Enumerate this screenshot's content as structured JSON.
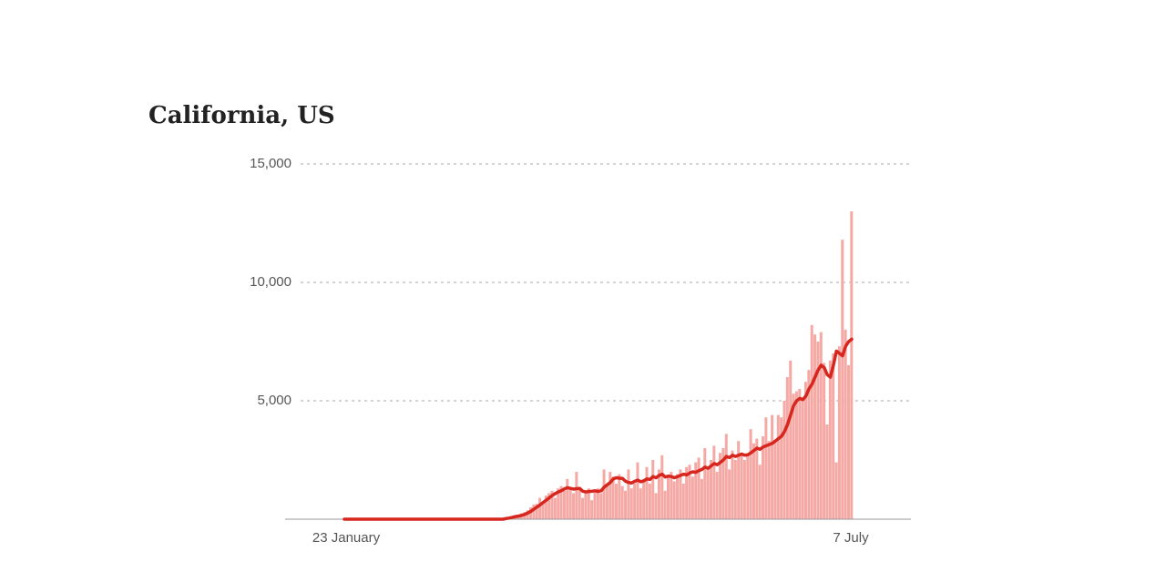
{
  "chart_data": {
    "type": "bar-line",
    "title": "California, US",
    "categories": [
      "23 January",
      null,
      null,
      null,
      null,
      null,
      null,
      null,
      null,
      null,
      null,
      null,
      null,
      null,
      null,
      null,
      null,
      null,
      null,
      null,
      null,
      null,
      null,
      null,
      null,
      null,
      null,
      null,
      null,
      null,
      null,
      null,
      null,
      null,
      null,
      null,
      null,
      null,
      null,
      null,
      null,
      null,
      null,
      null,
      null,
      null,
      null,
      null,
      null,
      null,
      null,
      null,
      null,
      null,
      null,
      null,
      null,
      null,
      null,
      null,
      null,
      null,
      null,
      null,
      null,
      null,
      null,
      null,
      null,
      null,
      null,
      null,
      null,
      null,
      null,
      null,
      null,
      null,
      null,
      null,
      null,
      null,
      null,
      null,
      null,
      null,
      null,
      null,
      null,
      null,
      null,
      null,
      null,
      null,
      null,
      null,
      null,
      null,
      null,
      null,
      null,
      null,
      null,
      null,
      null,
      null,
      null,
      null,
      null,
      null,
      null,
      null,
      null,
      null,
      null,
      null,
      null,
      null,
      null,
      null,
      null,
      null,
      null,
      null,
      null,
      null,
      null,
      null,
      null,
      null,
      null,
      null,
      null,
      null,
      null,
      null,
      null,
      null,
      null,
      null,
      null,
      null,
      null,
      null,
      null,
      null,
      null,
      null,
      null,
      null,
      null,
      null,
      null,
      null,
      null,
      null,
      null,
      null,
      null,
      null,
      null,
      null,
      null,
      null,
      null,
      null,
      "7 July"
    ],
    "series": [
      {
        "type": "bar",
        "color": "#f5a9a5",
        "values": [
          0,
          0,
          0,
          0,
          0,
          0,
          0,
          0,
          0,
          0,
          0,
          0,
          0,
          0,
          0,
          0,
          0,
          0,
          0,
          0,
          0,
          0,
          0,
          0,
          0,
          0,
          0,
          0,
          0,
          0,
          0,
          0,
          0,
          0,
          0,
          0,
          0,
          0,
          0,
          0,
          0,
          0,
          0,
          0,
          0,
          0,
          0,
          0,
          0,
          0,
          0,
          0,
          0,
          60,
          90,
          120,
          150,
          200,
          250,
          300,
          380,
          500,
          620,
          650,
          900,
          700,
          1000,
          1100,
          1200,
          900,
          1300,
          1400,
          1200,
          1700,
          1300,
          1100,
          2000,
          1300,
          900,
          1200,
          1300,
          800,
          1200,
          1300,
          1100,
          2100,
          1500,
          2000,
          1800,
          1500,
          1900,
          1400,
          1200,
          2100,
          1300,
          1500,
          2400,
          1300,
          1700,
          2200,
          1500,
          2500,
          1100,
          2100,
          2700,
          1200,
          1800,
          2000,
          1600,
          1900,
          2100,
          1500,
          2200,
          2300,
          1800,
          2400,
          2600,
          1700,
          3000,
          2200,
          2500,
          3100,
          2000,
          2800,
          3000,
          3600,
          2100,
          2900,
          2500,
          3300,
          2800,
          2500,
          2700,
          3800,
          3200,
          3400,
          2300,
          3500,
          4300,
          3300,
          4400,
          3300,
          4400,
          4300,
          5000,
          6000,
          6700,
          5300,
          5400,
          5500,
          5000,
          5800,
          6300,
          8200,
          7800,
          7500,
          7900,
          6600,
          4000,
          6700,
          7000,
          2400,
          7300,
          11800,
          8000,
          6500,
          13000
        ]
      },
      {
        "type": "line",
        "color": "#d7261e",
        "values": [
          0,
          0,
          0,
          0,
          0,
          0,
          0,
          0,
          0,
          0,
          0,
          0,
          0,
          0,
          0,
          0,
          0,
          0,
          0,
          0,
          0,
          0,
          0,
          0,
          0,
          0,
          0,
          0,
          0,
          0,
          0,
          0,
          0,
          0,
          0,
          0,
          0,
          0,
          0,
          0,
          0,
          0,
          0,
          0,
          0,
          0,
          0,
          0,
          0,
          0,
          0,
          0,
          0,
          30,
          50,
          80,
          110,
          130,
          160,
          200,
          260,
          330,
          420,
          510,
          600,
          700,
          800,
          900,
          1000,
          1080,
          1150,
          1200,
          1280,
          1330,
          1300,
          1270,
          1290,
          1300,
          1180,
          1150,
          1170,
          1180,
          1200,
          1170,
          1200,
          1350,
          1450,
          1550,
          1700,
          1750,
          1730,
          1720,
          1600,
          1550,
          1530,
          1600,
          1650,
          1580,
          1620,
          1700,
          1680,
          1800,
          1750,
          1850,
          1900,
          1780,
          1820,
          1800,
          1750,
          1800,
          1850,
          1900,
          1870,
          1950,
          2000,
          1980,
          2050,
          2100,
          2200,
          2150,
          2250,
          2350,
          2300,
          2400,
          2500,
          2650,
          2600,
          2700,
          2650,
          2700,
          2750,
          2700,
          2720,
          2800,
          2900,
          3000,
          2950,
          3050,
          3100,
          3150,
          3200,
          3300,
          3400,
          3500,
          3700,
          4000,
          4400,
          4800,
          5000,
          5100,
          5050,
          5200,
          5500,
          5700,
          6000,
          6300,
          6500,
          6400,
          6100,
          6000,
          6500,
          7100,
          7000,
          6900,
          7300,
          7500,
          7600
        ]
      }
    ],
    "ylim": [
      0,
      15000
    ],
    "yticks": [
      {
        "value": 5000,
        "label": "5,000"
      },
      {
        "value": 10000,
        "label": "10,000"
      },
      {
        "value": 15000,
        "label": "15,000"
      }
    ],
    "grid": true
  }
}
